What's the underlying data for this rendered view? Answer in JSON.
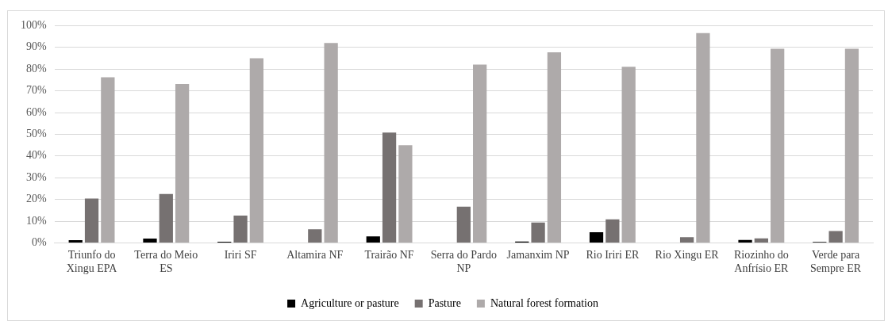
{
  "chart_data": {
    "type": "bar",
    "categories": [
      "Triunfo do Xingu EPA",
      "Terra do Meio ES",
      "Iriri SF",
      "Altamira NF",
      "Trairão NF",
      "Serra do Pardo NP",
      "Jamanxim NP",
      "Rio Iriri ER",
      "Rio Xingu ER",
      "Riozinho do Anfrísio ER",
      "Verde para Sempre ER"
    ],
    "series": [
      {
        "name": "Agriculture or pasture",
        "color": "#000000",
        "values": [
          1.2,
          2.0,
          0.5,
          0,
          3.0,
          0,
          0.6,
          4.9,
          0,
          1.3,
          0.4
        ]
      },
      {
        "name": "Pasture",
        "color": "#767171",
        "values": [
          20.4,
          22.5,
          12.6,
          6.3,
          50.8,
          16.7,
          9.4,
          10.8,
          2.6,
          2.1,
          5.4
        ]
      },
      {
        "name": "Natural forest formation",
        "color": "#aeaaaa",
        "values": [
          76.2,
          73.1,
          85.0,
          92.0,
          44.9,
          82.1,
          87.7,
          81.1,
          96.6,
          89.4,
          89.4
        ]
      }
    ],
    "ylim": [
      0,
      100
    ],
    "yticks": [
      {
        "value": 0,
        "label": "0%"
      },
      {
        "value": 10,
        "label": "10%"
      },
      {
        "value": 20,
        "label": "20%"
      },
      {
        "value": 30,
        "label": "30%"
      },
      {
        "value": 40,
        "label": "40%"
      },
      {
        "value": 50,
        "label": "50%"
      },
      {
        "value": 60,
        "label": "60%"
      },
      {
        "value": 70,
        "label": "70%"
      },
      {
        "value": 80,
        "label": "80%"
      },
      {
        "value": 90,
        "label": "90%"
      },
      {
        "value": 100,
        "label": "100%"
      }
    ],
    "grid": "y",
    "legend": "bottom"
  }
}
